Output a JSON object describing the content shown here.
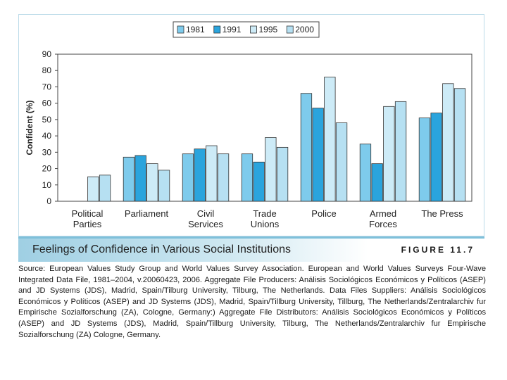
{
  "chart_data": {
    "type": "bar",
    "ylabel": "Confident (%)",
    "xlabel": "",
    "ylim": [
      0,
      90
    ],
    "yticks": [
      0,
      10,
      20,
      30,
      40,
      50,
      60,
      70,
      80,
      90
    ],
    "legend_position": "top-center",
    "categories": [
      [
        "Political",
        "Parties"
      ],
      [
        "Parliament"
      ],
      [
        "Civil",
        "Services"
      ],
      [
        "Trade",
        "Unions"
      ],
      [
        "Police"
      ],
      [
        "Armed",
        "Forces"
      ],
      [
        "The Press"
      ]
    ],
    "series": [
      {
        "name": "1981",
        "color": "#7ecbec",
        "values": [
          null,
          27,
          29,
          29,
          66,
          35,
          51
        ]
      },
      {
        "name": "1991",
        "color": "#2aa4dd",
        "values": [
          null,
          28,
          32,
          24,
          57,
          23,
          54
        ]
      },
      {
        "name": "1995",
        "color": "#cdebf7",
        "values": [
          15,
          23,
          34,
          39,
          76,
          58,
          72
        ]
      },
      {
        "name": "2000",
        "color": "#b6e0f2",
        "values": [
          16,
          19,
          29,
          33,
          48,
          61,
          69
        ]
      }
    ]
  },
  "caption": {
    "title": "Feelings of Confidence in Various Social Institutions",
    "figure_label": "FIGURE 11.7"
  },
  "source": "Source: European Values Study Group and World Values Survey Association. European and World Values Surveys Four-Wave Integrated Data File, 1981–2004, v.20060423, 2006. Aggregate File Producers: Análisis Sociológicos Económicos y Políticos (ASEP) and JD Systems (JDS), Madrid, Spain/Tilburg University, Tilburg, The Netherlands. Data Files Suppliers: Análisis Sociológicos Económicos y Políticos (ASEP) and JD Systems (JDS), Madrid, Spain/Tillburg University, Tillburg, The Netherlands/Zentralarchiv fur Empirische Sozialforschung (ZA), Cologne, Germany:) Aggregate File Distributors: Análisis Sociológicos Económicos y Políticos (ASEP) and JD Systems (JDS), Madrid, Spain/Tillburg University, Tilburg, The Netherlands/Zentralarchiv fur Empirische Sozialforschung (ZA) Cologne, Germany."
}
